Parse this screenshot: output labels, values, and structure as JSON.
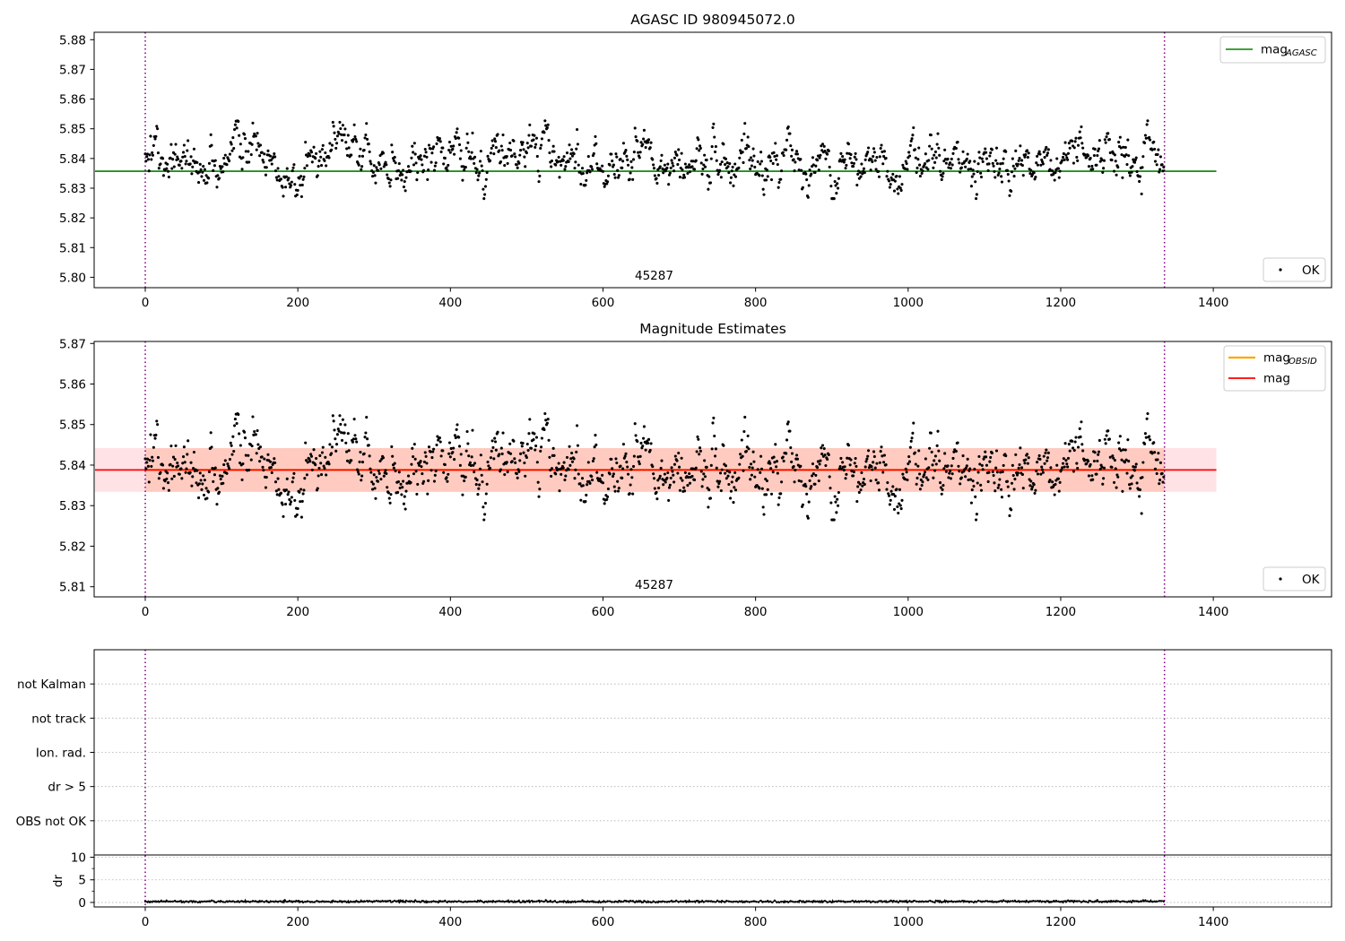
{
  "chart_data": [
    {
      "type": "scatter",
      "title": "AGASC ID 980945072.0",
      "xlim": [
        -67,
        1555
      ],
      "ylim": [
        5.7965,
        5.8825
      ],
      "xticks": [
        "0",
        "200",
        "400",
        "600",
        "800",
        "1000",
        "1200",
        "1400"
      ],
      "yticks": [
        "5.80",
        "5.81",
        "5.82",
        "5.83",
        "5.84",
        "5.85",
        "5.86",
        "5.87",
        "5.88"
      ],
      "grid": false,
      "agasc_mag": 5.8357,
      "obs_boundaries": [
        0,
        1336
      ],
      "obsid_label": "45287",
      "obsid_label_x": 667,
      "legend_upper": {
        "placement": "upper right",
        "entries": [
          {
            "label": "mag",
            "subscript": "AGASC",
            "color": "#008000"
          }
        ]
      },
      "legend_lower": {
        "placement": "lower right",
        "entries": [
          {
            "label": "OK",
            "color": "#000000"
          }
        ]
      },
      "series": {
        "name": "OK",
        "n_points": 1336,
        "mean": 5.8388,
        "std": 0.0048,
        "min": 5.8265,
        "max": 5.8527
      }
    },
    {
      "type": "scatter",
      "title": "Magnitude Estimates",
      "xlim": [
        -67,
        1555
      ],
      "ylim": [
        5.8075,
        5.8705
      ],
      "xticks": [
        "0",
        "200",
        "400",
        "600",
        "800",
        "1000",
        "1200",
        "1400"
      ],
      "yticks": [
        "5.81",
        "5.82",
        "5.83",
        "5.84",
        "5.85",
        "5.86",
        "5.87"
      ],
      "grid": false,
      "mag": 5.8388,
      "mag_band": [
        5.8334,
        5.8442
      ],
      "mag_obsid": 5.8388,
      "obs_boundaries": [
        0,
        1336
      ],
      "obsid_label": "45287",
      "obsid_label_x": 667,
      "legend_upper": {
        "placement": "upper right",
        "entries": [
          {
            "label": "mag",
            "subscript": "OBSID",
            "color": "#ffa500"
          },
          {
            "label": "mag",
            "color": "#ff0000"
          }
        ]
      },
      "legend_lower": {
        "placement": "lower right",
        "entries": [
          {
            "label": "OK",
            "color": "#000000"
          }
        ]
      },
      "series": {
        "name": "OK",
        "n_points": 1336,
        "mean": 5.8388,
        "std": 0.0048,
        "min": 5.8265,
        "max": 5.8527
      }
    },
    {
      "type": "scatter",
      "title": "",
      "flags": [
        "OBS not OK",
        "dr > 5",
        "Ion. rad.",
        "not track",
        "not Kalman"
      ],
      "flag_counts": [
        0,
        0,
        0,
        0,
        0
      ],
      "obs_boundaries": [
        0,
        1336
      ],
      "dr_ylabel": "dr",
      "dr_yticks": [
        "0",
        "5",
        "10"
      ],
      "dr_ylim": [
        -1,
        10.5
      ],
      "xlim": [
        -67,
        1555
      ],
      "xticks": [
        "0",
        "200",
        "400",
        "600",
        "800",
        "1000",
        "1200",
        "1400"
      ],
      "dr_series": {
        "n_points": 1336,
        "mean": 0.2,
        "max": 0.5
      }
    }
  ]
}
